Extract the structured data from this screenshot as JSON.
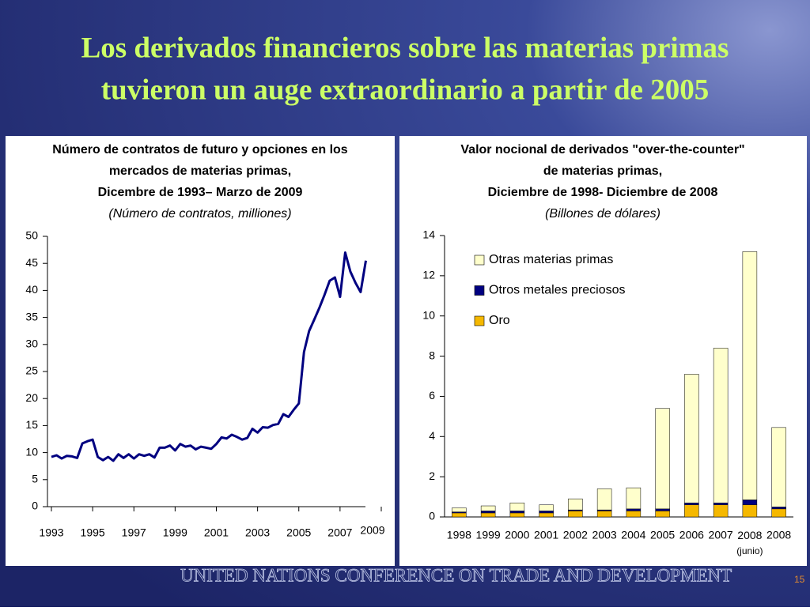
{
  "slide_title": [
    "Los derivados financieros sobre las materias primas",
    "tuvieron un auge extraordinario a partir de 2005"
  ],
  "footer": "UNITED NATIONS CONFERENCE ON TRADE AND DEVELOPMENT",
  "page_number": "15",
  "chart_data": [
    {
      "type": "line",
      "title": [
        "Número de contratos de futuro y opciones en los",
        "mercados de materias primas,",
        "Dicembre de 1993– Marzo de 2009"
      ],
      "subtitle": "(Número de contratos, milliones)",
      "color": "#000080",
      "x": [
        1993,
        1993.25,
        1993.5,
        1993.75,
        1994,
        1994.25,
        1994.5,
        1994.75,
        1995,
        1995.25,
        1995.5,
        1995.75,
        1996,
        1996.25,
        1996.5,
        1996.75,
        1997,
        1997.25,
        1997.5,
        1997.75,
        1998,
        1998.25,
        1998.5,
        1998.75,
        1999,
        1999.25,
        1999.5,
        1999.75,
        2000,
        2000.25,
        2000.5,
        2000.75,
        2001,
        2001.25,
        2001.5,
        2001.75,
        2002,
        2002.25,
        2002.5,
        2002.75,
        2003,
        2003.25,
        2003.5,
        2003.75,
        2004,
        2004.25,
        2004.5,
        2004.75,
        2005,
        2005.25,
        2005.5,
        2005.75,
        2006,
        2006.25,
        2006.5,
        2006.75,
        2007,
        2007.25,
        2007.5,
        2007.75,
        2008,
        2008.25
      ],
      "values": [
        9.2,
        9.5,
        8.9,
        9.4,
        9.3,
        9.0,
        11.7,
        12.1,
        12.4,
        9.2,
        8.6,
        9.2,
        8.5,
        9.7,
        9.0,
        9.7,
        8.9,
        9.7,
        9.4,
        9.7,
        9.1,
        10.9,
        10.9,
        11.3,
        10.4,
        11.6,
        11.1,
        11.3,
        10.6,
        11.1,
        10.9,
        10.7,
        11.6,
        12.8,
        12.6,
        13.3,
        12.9,
        12.4,
        12.7,
        14.4,
        13.7,
        14.7,
        14.6,
        15.1,
        15.3,
        17.1,
        16.6,
        17.9,
        19.1,
        28.6,
        32.5,
        34.6,
        36.8,
        39.2,
        41.8,
        42.4,
        38.8,
        47.0,
        43.5,
        41.4,
        39.7,
        45.5
      ],
      "xlim": [
        1993,
        2009
      ],
      "xticks": [
        1993,
        1995,
        1997,
        1999,
        2001,
        2003,
        2005,
        2007,
        2009
      ],
      "ylim": [
        0,
        50
      ],
      "yticks": [
        0,
        5,
        10,
        15,
        20,
        25,
        30,
        35,
        40,
        45,
        50
      ]
    },
    {
      "type": "bar",
      "stacked": true,
      "title": [
        "Valor nocional de derivados \"over-the-counter\"",
        "de materias primas,",
        "Diciembre de 1998- Diciembre de 2008"
      ],
      "subtitle": "(Billones de dólares)",
      "categories": [
        "1998",
        "1999",
        "2000",
        "2001",
        "2002",
        "2003",
        "2004",
        "2005",
        "2006",
        "2007",
        "2008 (junio)",
        "2008"
      ],
      "series": [
        {
          "name": "Oro",
          "color": "#f5b800",
          "values": [
            0.2,
            0.2,
            0.2,
            0.2,
            0.3,
            0.3,
            0.3,
            0.3,
            0.6,
            0.6,
            0.6,
            0.4
          ]
        },
        {
          "name": "Otros metales preciosos",
          "color": "#000080",
          "values": [
            0.05,
            0.1,
            0.1,
            0.1,
            0.05,
            0.05,
            0.1,
            0.1,
            0.1,
            0.1,
            0.25,
            0.1
          ]
        },
        {
          "name": "Otras materias primas",
          "color": "#ffffcc",
          "values": [
            0.2,
            0.25,
            0.4,
            0.3,
            0.55,
            1.05,
            1.05,
            5.0,
            6.4,
            7.7,
            12.35,
            3.95
          ]
        }
      ],
      "ylim": [
        0,
        14
      ],
      "yticks": [
        0,
        2,
        4,
        6,
        8,
        10,
        12,
        14
      ]
    }
  ]
}
